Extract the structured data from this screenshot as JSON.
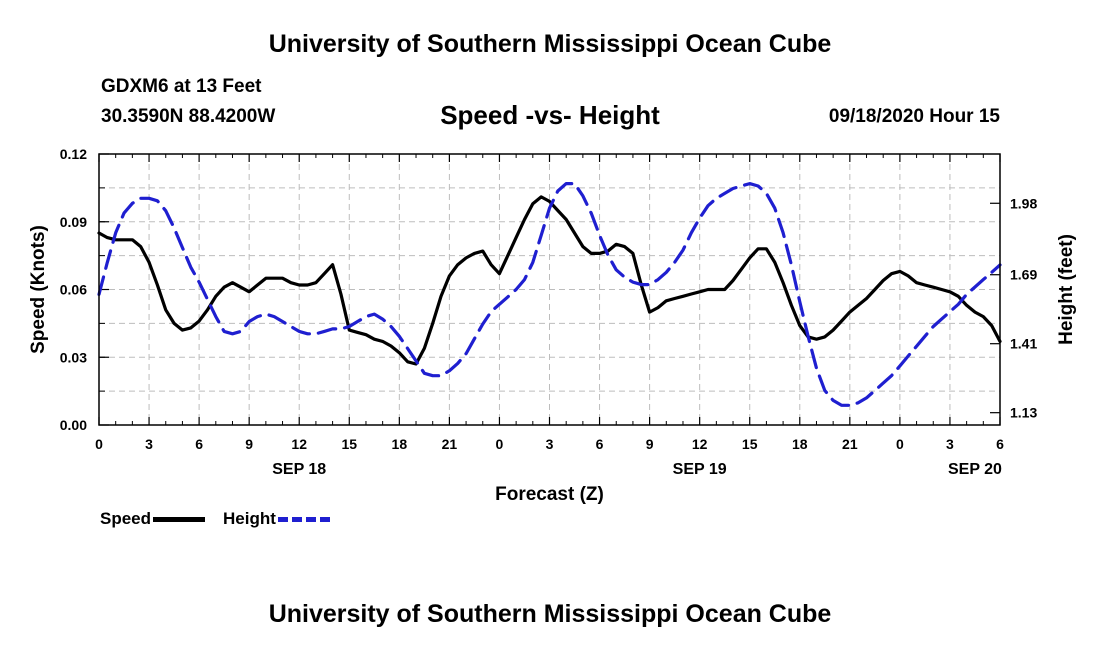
{
  "header": {
    "title": "University of Southern Mississippi Ocean Cube",
    "station": "GDXM6 at 13 Feet",
    "coords": "30.3590N 88.4200W",
    "subtitle": "Speed -vs- Height",
    "datetime": "09/18/2020 Hour 15"
  },
  "footer": {
    "title": "University of Southern Mississippi Ocean Cube"
  },
  "legend": {
    "speed_label": "Speed",
    "height_label": "Height"
  },
  "colors": {
    "speed": "#000000",
    "height": "#1f1fd0",
    "grid": "#bdbdbd"
  },
  "chart_data": {
    "type": "line",
    "title": "Speed -vs- Height",
    "xlabel": "Forecast (Z)",
    "ylabel": "Speed (Knots)",
    "y2label": "Height (feet)",
    "xlim": [
      0,
      54
    ],
    "ylim": [
      0,
      0.12
    ],
    "y2lim": [
      1.08,
      2.18
    ],
    "xticks": [
      0,
      3,
      6,
      9,
      12,
      15,
      18,
      21,
      24,
      27,
      30,
      33,
      36,
      39,
      42,
      45,
      48,
      51,
      54
    ],
    "xtick_labels": [
      "0",
      "3",
      "6",
      "9",
      "12",
      "15",
      "18",
      "21",
      "0",
      "3",
      "6",
      "9",
      "12",
      "15",
      "18",
      "21",
      "0",
      "3",
      "6"
    ],
    "yticks": [
      0,
      0.03,
      0.06,
      0.09,
      0.12
    ],
    "ytick_labels": [
      "0.00",
      "0.03",
      "0.06",
      "0.09",
      "0.12"
    ],
    "y2ticks": [
      1.13,
      1.41,
      1.69,
      1.98
    ],
    "y2tick_labels": [
      "1.13",
      "1.41",
      "1.69",
      "1.98"
    ],
    "date_labels": [
      {
        "x": 12,
        "label": "SEP 18"
      },
      {
        "x": 36,
        "label": "SEP 19"
      },
      {
        "x": 52.5,
        "label": "SEP 20"
      }
    ],
    "series": [
      {
        "name": "Speed",
        "axis": "left",
        "style": "solid",
        "x": [
          0,
          0.5,
          1,
          1.5,
          2,
          2.5,
          3,
          3.5,
          4,
          4.5,
          5,
          5.5,
          6,
          6.5,
          7,
          7.5,
          8,
          8.5,
          9,
          9.5,
          10,
          10.5,
          11,
          11.5,
          12,
          12.5,
          13,
          13.5,
          14,
          14.5,
          15,
          15.5,
          16,
          16.5,
          17,
          17.5,
          18,
          18.5,
          19,
          19.5,
          20,
          20.5,
          21,
          21.5,
          22,
          22.5,
          23,
          23.5,
          24,
          24.5,
          25,
          25.5,
          26,
          26.5,
          27,
          27.5,
          28,
          28.5,
          29,
          29.5,
          30,
          30.5,
          31,
          31.5,
          32,
          32.5,
          33,
          33.5,
          34,
          34.5,
          35,
          35.5,
          36,
          36.5,
          37,
          37.5,
          38,
          38.5,
          39,
          39.5,
          40,
          40.5,
          41,
          41.5,
          42,
          42.5,
          43,
          43.5,
          44,
          44.5,
          45,
          45.5,
          46,
          46.5,
          47,
          47.5,
          48,
          48.5,
          49,
          49.5,
          50,
          50.5,
          51,
          51.5,
          52,
          52.5,
          53,
          53.5,
          54
        ],
        "values": [
          0.085,
          0.083,
          0.082,
          0.082,
          0.082,
          0.079,
          0.072,
          0.062,
          0.051,
          0.045,
          0.042,
          0.043,
          0.046,
          0.051,
          0.057,
          0.061,
          0.063,
          0.061,
          0.059,
          0.062,
          0.065,
          0.065,
          0.065,
          0.063,
          0.062,
          0.062,
          0.063,
          0.067,
          0.071,
          0.058,
          0.042,
          0.041,
          0.04,
          0.038,
          0.037,
          0.035,
          0.032,
          0.028,
          0.027,
          0.034,
          0.045,
          0.057,
          0.066,
          0.071,
          0.074,
          0.076,
          0.077,
          0.071,
          0.067,
          0.075,
          0.083,
          0.091,
          0.098,
          0.101,
          0.099,
          0.095,
          0.091,
          0.085,
          0.079,
          0.076,
          0.076,
          0.077,
          0.08,
          0.079,
          0.076,
          0.062,
          0.05,
          0.052,
          0.055,
          0.056,
          0.057,
          0.058,
          0.059,
          0.06,
          0.06,
          0.06,
          0.064,
          0.069,
          0.074,
          0.078,
          0.078,
          0.072,
          0.063,
          0.053,
          0.044,
          0.039,
          0.038,
          0.039,
          0.042,
          0.046,
          0.05,
          0.053,
          0.056,
          0.06,
          0.064,
          0.067,
          0.068,
          0.066,
          0.063,
          0.062,
          0.061,
          0.06,
          0.059,
          0.057,
          0.053,
          0.05,
          0.048,
          0.044,
          0.037
        ]
      },
      {
        "name": "Height",
        "axis": "right",
        "style": "dashed",
        "x": [
          0,
          0.5,
          1,
          1.5,
          2,
          2.5,
          3,
          3.5,
          4,
          4.5,
          5,
          5.5,
          6,
          6.5,
          7,
          7.5,
          8,
          8.5,
          9,
          9.5,
          10,
          10.5,
          11,
          11.5,
          12,
          12.5,
          13,
          13.5,
          14,
          14.5,
          15,
          15.5,
          16,
          16.5,
          17,
          17.5,
          18,
          18.5,
          19,
          19.5,
          20,
          20.5,
          21,
          21.5,
          22,
          22.5,
          23,
          23.5,
          24,
          24.5,
          25,
          25.5,
          26,
          26.5,
          27,
          27.5,
          28,
          28.5,
          29,
          29.5,
          30,
          30.5,
          31,
          31.5,
          32,
          32.5,
          33,
          33.5,
          34,
          34.5,
          35,
          35.5,
          36,
          36.5,
          37,
          37.5,
          38,
          38.5,
          39,
          39.5,
          40,
          40.5,
          41,
          41.5,
          42,
          42.5,
          43,
          43.5,
          44,
          44.5,
          45,
          45.5,
          46,
          46.5,
          47,
          47.5,
          48,
          48.5,
          49,
          49.5,
          50,
          50.5,
          51,
          51.5,
          52,
          52.5,
          53,
          53.5,
          54
        ],
        "values": [
          1.61,
          1.74,
          1.86,
          1.94,
          1.98,
          2.0,
          2.0,
          1.99,
          1.95,
          1.88,
          1.8,
          1.72,
          1.66,
          1.59,
          1.52,
          1.46,
          1.45,
          1.46,
          1.5,
          1.52,
          1.53,
          1.52,
          1.5,
          1.48,
          1.46,
          1.45,
          1.45,
          1.46,
          1.47,
          1.47,
          1.48,
          1.5,
          1.52,
          1.53,
          1.51,
          1.48,
          1.44,
          1.39,
          1.34,
          1.29,
          1.28,
          1.28,
          1.3,
          1.33,
          1.37,
          1.43,
          1.49,
          1.54,
          1.57,
          1.6,
          1.63,
          1.67,
          1.74,
          1.85,
          1.96,
          2.03,
          2.06,
          2.06,
          2.01,
          1.94,
          1.85,
          1.77,
          1.71,
          1.68,
          1.66,
          1.65,
          1.65,
          1.67,
          1.7,
          1.74,
          1.79,
          1.86,
          1.92,
          1.97,
          2.0,
          2.02,
          2.04,
          2.05,
          2.06,
          2.05,
          2.02,
          1.96,
          1.86,
          1.73,
          1.58,
          1.44,
          1.31,
          1.22,
          1.18,
          1.16,
          1.16,
          1.17,
          1.19,
          1.22,
          1.25,
          1.28,
          1.32,
          1.36,
          1.4,
          1.44,
          1.48,
          1.51,
          1.54,
          1.57,
          1.61,
          1.64,
          1.67,
          1.7,
          1.73
        ]
      }
    ]
  }
}
